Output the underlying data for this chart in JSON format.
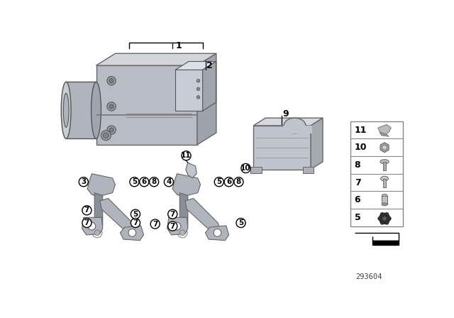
{
  "bg_color": "#ffffff",
  "part_number": "293604",
  "unit_color_front": "#b8bcc4",
  "unit_color_top": "#d2d5da",
  "unit_color_side": "#9fa3ab",
  "bracket_color": "#b0b4bc",
  "bracket_dark": "#8a8e96",
  "cover_color": "#c0c4cc",
  "legend_items": [
    11,
    10,
    8,
    7,
    6,
    5
  ]
}
